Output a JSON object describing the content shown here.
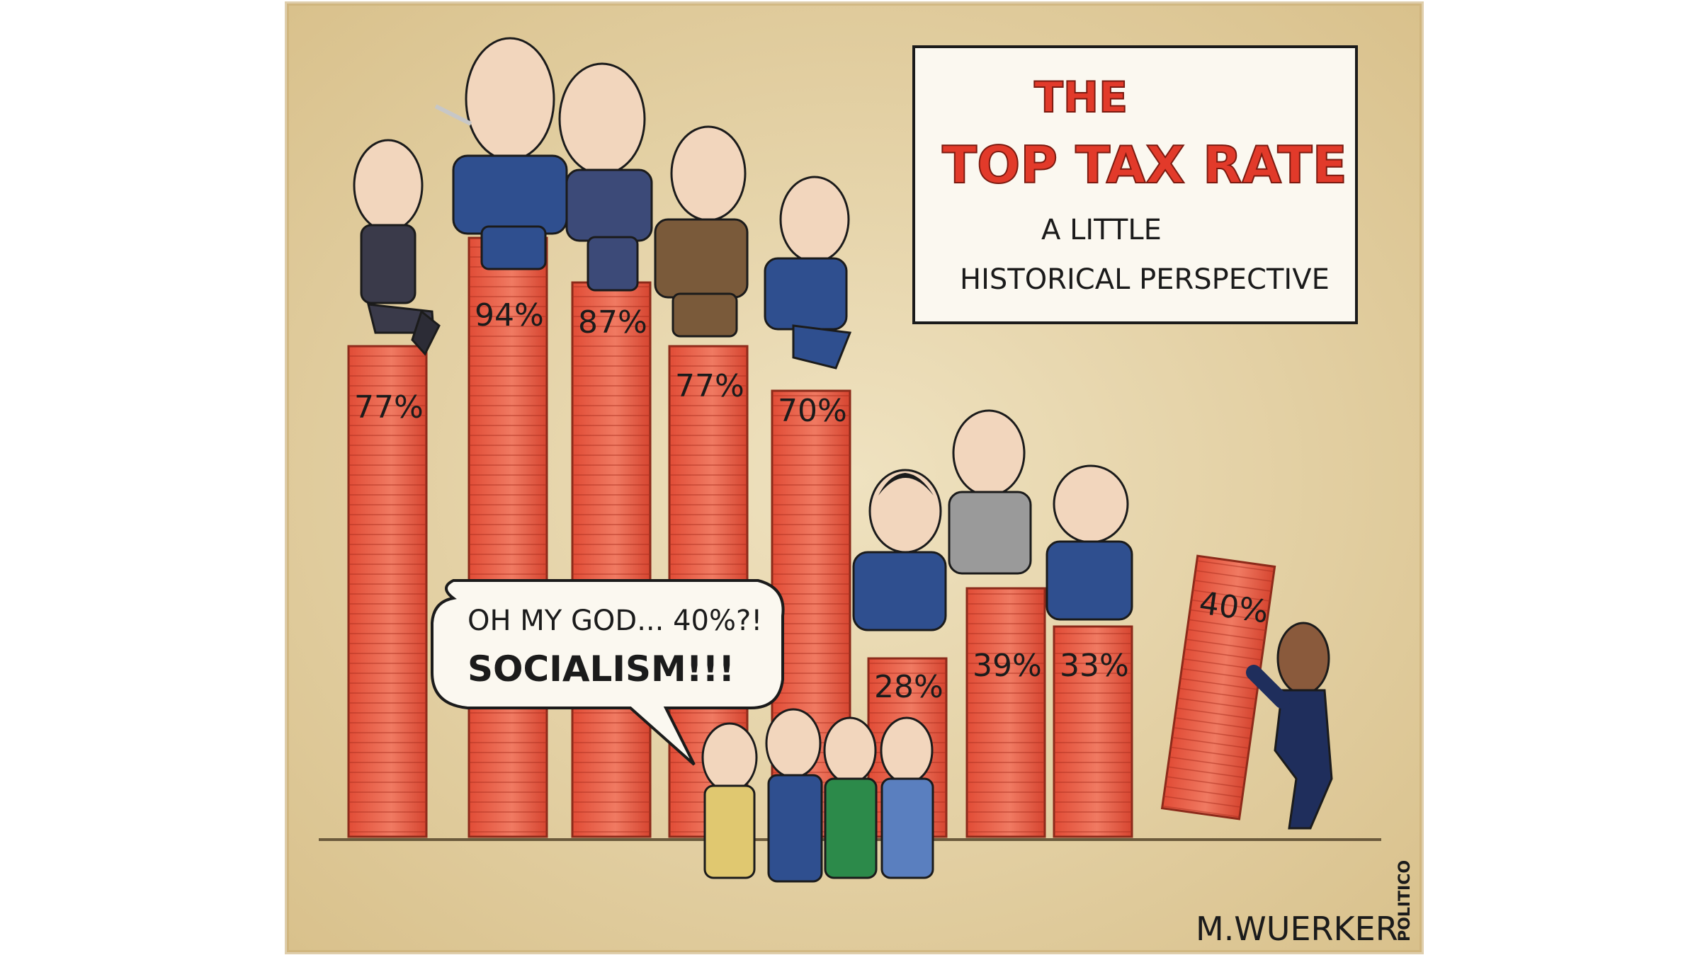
{
  "title_card": {
    "line1": "THE",
    "line2": "TOP TAX RATE",
    "sub1": "A LITTLE",
    "sub2": "HISTORICAL PERSPECTIVE"
  },
  "bars": [
    {
      "label": "77%",
      "rate": 77
    },
    {
      "label": "94%",
      "rate": 94
    },
    {
      "label": "87%",
      "rate": 87
    },
    {
      "label": "77%",
      "rate": 77
    },
    {
      "label": "70%",
      "rate": 70
    },
    {
      "label": "28%",
      "rate": 28
    },
    {
      "label": "39%",
      "rate": 39
    },
    {
      "label": "33%",
      "rate": 33
    },
    {
      "label": "40%",
      "rate": 40
    }
  ],
  "speech": {
    "line1": "OH MY GOD... 40%?!",
    "line2": "SOCIALISM!!!"
  },
  "signature": "M.WUERKER",
  "credit": "POLITICO",
  "colors": {
    "paper": "#e9d9b2",
    "bar": "#e8604a",
    "bar_light": "#f29a84",
    "ink": "#1b1b1b",
    "suit": "#2f4f8f",
    "title_red": "#e23a2a"
  }
}
